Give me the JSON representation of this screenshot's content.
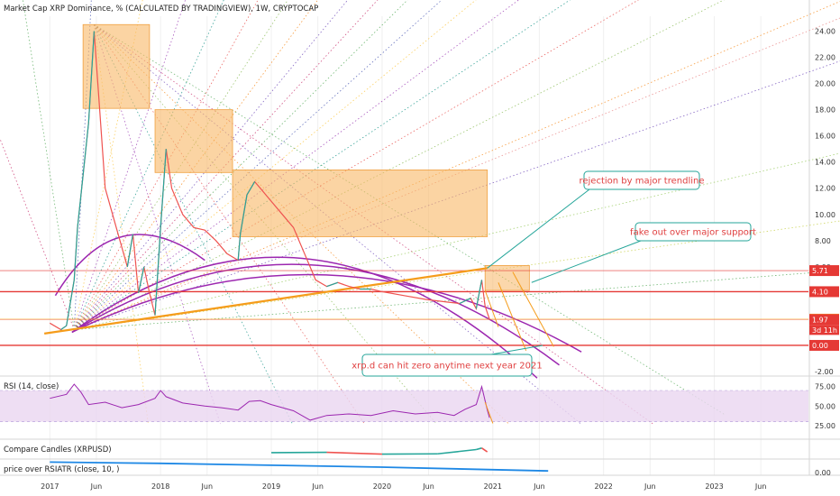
{
  "title": "Market Cap XRP Dominance, % (CALCULATED BY TRADINGVIEW), 1W, CRYPTOCAP",
  "chart_data": [
    {
      "type": "line",
      "name": "main",
      "title": "Market Cap XRP Dominance, % (CALCULATED BY TRADINGVIEW), 1W, CRYPTOCAP",
      "ylim": [
        -2,
        25
      ],
      "y_ticks": [
        "24.00",
        "22.00",
        "20.00",
        "18.00",
        "16.00",
        "14.00",
        "12.00",
        "10.00",
        "8.00",
        "6.00",
        "4.00",
        "2.00",
        "0.00",
        "-2.00"
      ],
      "x": [
        2017.0,
        2017.1,
        2017.15,
        2017.22,
        2017.25,
        2017.3,
        2017.35,
        2017.4,
        2017.45,
        2017.5,
        2017.6,
        2017.7,
        2017.75,
        2017.8,
        2017.85,
        2017.9,
        2017.95,
        2018.0,
        2018.05,
        2018.1,
        2018.15,
        2018.2,
        2018.3,
        2018.4,
        2018.5,
        2018.6,
        2018.7,
        2018.72,
        2018.78,
        2018.85,
        2018.9,
        2018.95,
        2019.0,
        2019.1,
        2019.2,
        2019.3,
        2019.4,
        2019.5,
        2019.6,
        2019.7,
        2019.8,
        2019.9,
        2020.0,
        2020.2,
        2020.4,
        2020.6,
        2020.7,
        2020.8,
        2020.85,
        2020.9,
        2020.93,
        2020.97
      ],
      "values": [
        1.7,
        1.2,
        1.5,
        5.0,
        9.0,
        13.0,
        17.0,
        24.0,
        18.0,
        12.0,
        9.0,
        6.0,
        8.5,
        4.0,
        6.0,
        4.0,
        2.3,
        9.0,
        15.0,
        12.0,
        11.0,
        10.0,
        9.0,
        8.8,
        8.0,
        7.0,
        6.5,
        8.5,
        11.5,
        12.5,
        12.0,
        11.5,
        11.0,
        10.0,
        9.0,
        7.0,
        5.0,
        4.5,
        4.8,
        4.5,
        4.3,
        4.3,
        4.1,
        3.8,
        3.5,
        3.3,
        3.2,
        3.6,
        2.8,
        5.0,
        3.0,
        2.0
      ],
      "levels": [
        {
          "value": 5.71,
          "label": "5.71",
          "color": "#e53935"
        },
        {
          "value": 4.1,
          "label": "4.10",
          "color": "#e53935"
        },
        {
          "value": 2.0,
          "label": "2.00",
          "color": "#f9a825"
        },
        {
          "value": 1.97,
          "label": "1.97",
          "color": "#e53935"
        },
        {
          "value": 0.0,
          "label": "0.00",
          "color": "#e53935"
        }
      ],
      "countdown_label": "3d 11h",
      "annotations": [
        "rejection by major trendline",
        "fake out over major support",
        "xrp.d can hit zero anytime next year 2021"
      ]
    },
    {
      "type": "line",
      "name": "rsi",
      "title": "RSI (14, close)",
      "ylim": [
        10,
        85
      ],
      "y_ticks": [
        "75.00",
        "50.00",
        "25.00"
      ],
      "x": [
        2017.0,
        2017.15,
        2017.22,
        2017.28,
        2017.35,
        2017.5,
        2017.65,
        2017.8,
        2017.95,
        2018.0,
        2018.05,
        2018.2,
        2018.4,
        2018.55,
        2018.7,
        2018.8,
        2018.9,
        2019.0,
        2019.2,
        2019.35,
        2019.5,
        2019.7,
        2019.9,
        2020.1,
        2020.3,
        2020.5,
        2020.65,
        2020.75,
        2020.85,
        2020.9,
        2020.95,
        2020.97
      ],
      "values": [
        60,
        65,
        78,
        68,
        52,
        55,
        48,
        52,
        60,
        70,
        62,
        54,
        50,
        48,
        45,
        56,
        57,
        52,
        44,
        32,
        38,
        40,
        38,
        44,
        40,
        42,
        38,
        46,
        52,
        75,
        45,
        35
      ]
    },
    {
      "type": "line",
      "name": "compare",
      "title": "Compare Candles (XRPUSD)",
      "y_ticks": [],
      "x": [
        2019.0,
        2019.5,
        2020.0,
        2020.5,
        2020.85,
        2020.9,
        2020.95
      ],
      "values": [
        0.3,
        0.32,
        0.2,
        0.22,
        0.5,
        0.6,
        0.35
      ]
    },
    {
      "type": "line",
      "name": "ratio",
      "title": "price over RSIATR (close, 10, )",
      "y_ticks": [
        "0.00"
      ],
      "x": [
        2017.0,
        2018.0,
        2019.0,
        2020.0,
        2021.0,
        2021.5
      ],
      "values": [
        0.9,
        0.8,
        0.65,
        0.5,
        0.3,
        0.2
      ]
    }
  ],
  "x_axis": {
    "labels": [
      "2017",
      "Jun",
      "2018",
      "Jun",
      "2019",
      "Jun",
      "2020",
      "Jun",
      "2021",
      "Jun",
      "2022",
      "Jun",
      "2023",
      "Jun"
    ],
    "values": [
      2017.0,
      2017.42,
      2018.0,
      2018.42,
      2019.0,
      2019.42,
      2020.0,
      2020.42,
      2021.0,
      2021.42,
      2022.0,
      2022.42,
      2023.0,
      2023.42
    ]
  },
  "colors": {
    "up": "#26a69a",
    "down": "#ef5350",
    "box": "#f8b766",
    "trendline": "#f59c1a",
    "arc": "#9c27b0",
    "callout": "#26a69a",
    "rsi": "#9c27b0",
    "rsi_band": "#ead6f0",
    "ratio": "#1e88e5"
  }
}
